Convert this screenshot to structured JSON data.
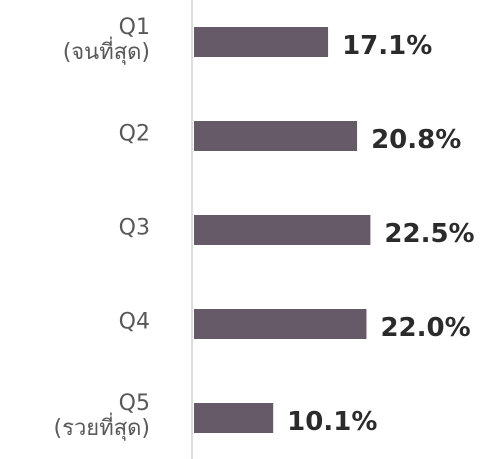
{
  "chart_data": {
    "type": "bar",
    "orientation": "horizontal",
    "categories": [
      "Q1\n(จนที่สุด)",
      "Q2",
      "Q3",
      "Q4",
      "Q5\n(รวยที่สุด)"
    ],
    "values": [
      17.1,
      20.8,
      22.5,
      22.0,
      10.1
    ],
    "value_labels": [
      "17.1%",
      "20.8%",
      "22.5%",
      "22.0%",
      "10.1%"
    ],
    "color": "#675a68"
  }
}
